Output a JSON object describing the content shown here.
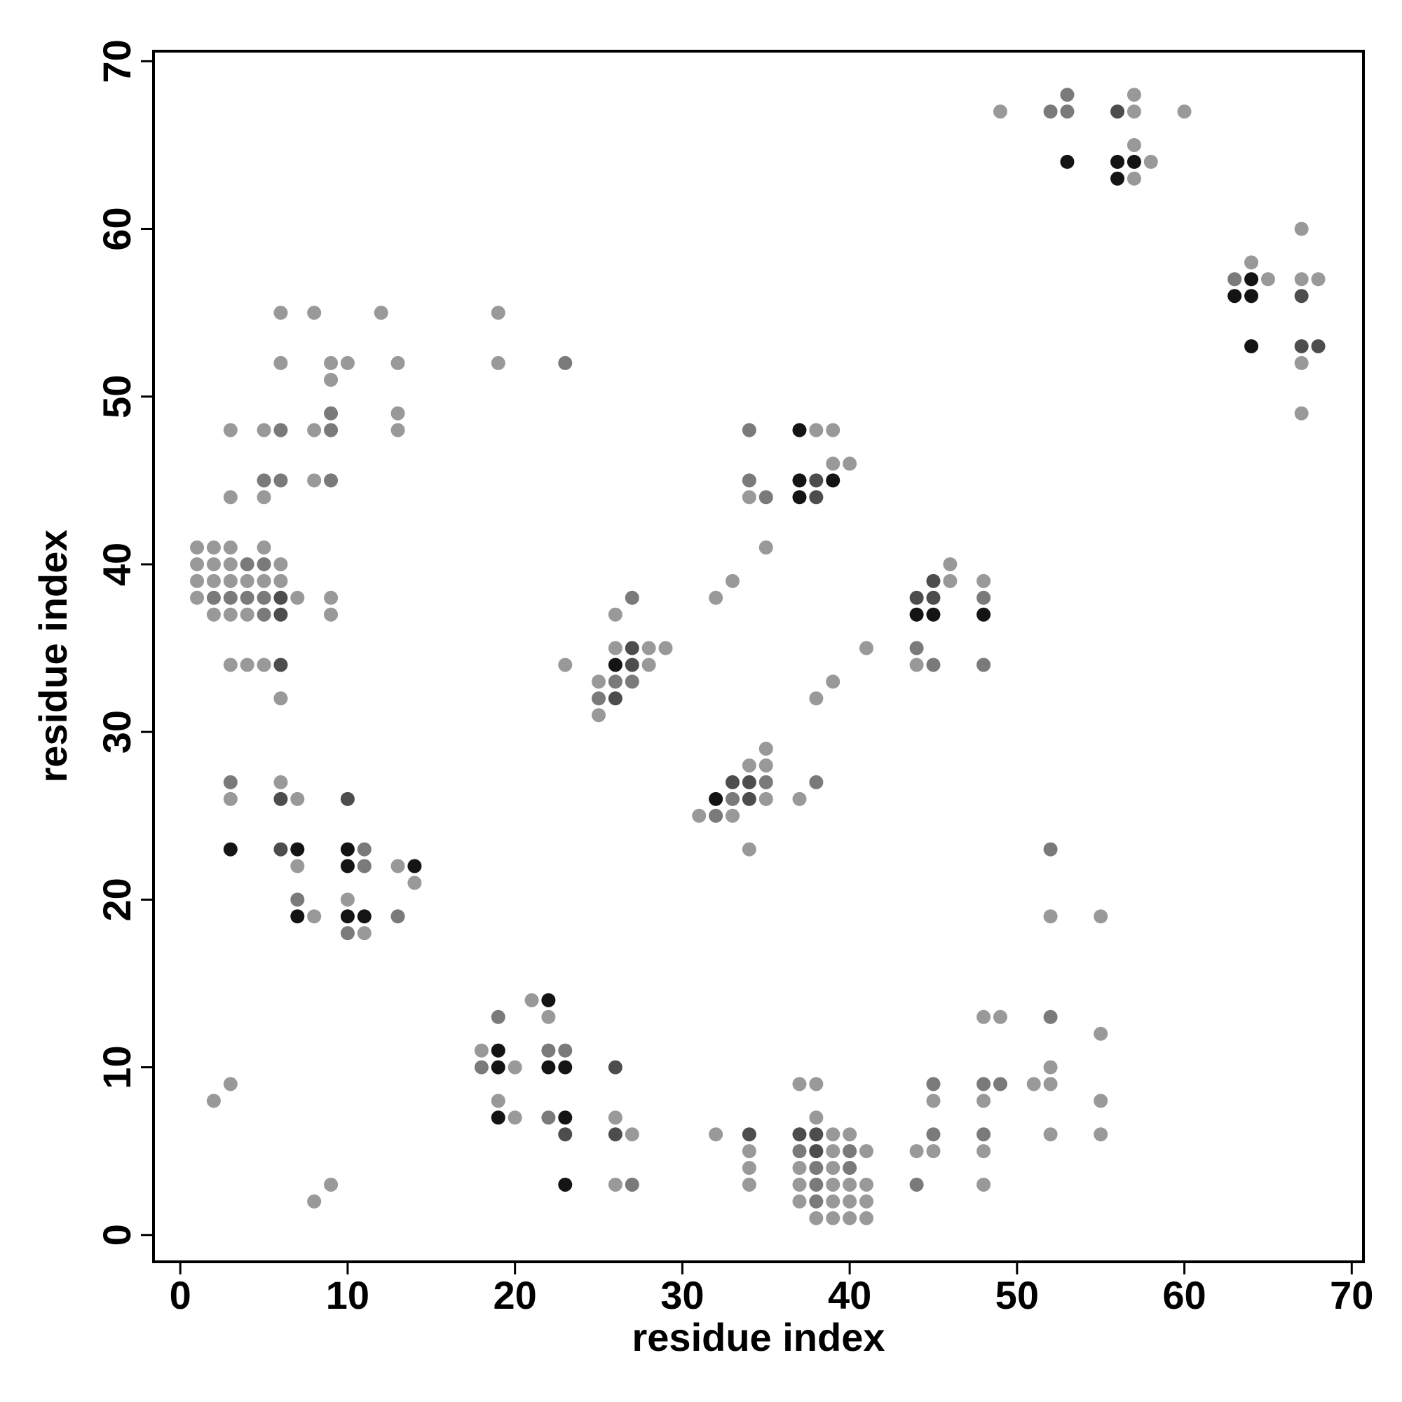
{
  "chart_data": {
    "type": "scatter",
    "x_label": "residue index",
    "y_label": "residue index",
    "xlim": [
      -1.6,
      70.7
    ],
    "ylim": [
      -1.6,
      70.6
    ],
    "xticks": [
      0,
      10,
      20,
      30,
      40,
      50,
      60,
      70
    ],
    "yticks": [
      0,
      10,
      20,
      30,
      40,
      50,
      60,
      70
    ],
    "series": [
      {
        "color": "#999999",
        "x": [
          57,
          49,
          57,
          60,
          57,
          58,
          57,
          67,
          64,
          65,
          67,
          68,
          6,
          8,
          12,
          19,
          6,
          9,
          10,
          13,
          19,
          67,
          9,
          13,
          67,
          3,
          5,
          8,
          13,
          38,
          39,
          39,
          40,
          8,
          3,
          5,
          34,
          1,
          2,
          3,
          5,
          35,
          1,
          2,
          3,
          6,
          46,
          1,
          2,
          3,
          4,
          5,
          6,
          33,
          46,
          48,
          1,
          7,
          9,
          32,
          2,
          3,
          4,
          9,
          26,
          26,
          28,
          29,
          41,
          3,
          4,
          5,
          23,
          28,
          44,
          25,
          39,
          6,
          38,
          25,
          35,
          34,
          35,
          6,
          3,
          7,
          35,
          37,
          31,
          33,
          34,
          7,
          13,
          14,
          10,
          8,
          52,
          55,
          11,
          21,
          22,
          48,
          49,
          55,
          18,
          20,
          52,
          3,
          37,
          38,
          51,
          52,
          2,
          19,
          45,
          48,
          55,
          20,
          26,
          38,
          27,
          32,
          39,
          40,
          52,
          55,
          34,
          39,
          41,
          44,
          45,
          48,
          34,
          37,
          39,
          9,
          26,
          34,
          37,
          39,
          40,
          41,
          48,
          8,
          37,
          39,
          40,
          41,
          38,
          39,
          40,
          41
        ],
        "values": [
          68,
          67,
          67,
          67,
          65,
          64,
          63,
          60,
          58,
          57,
          57,
          57,
          55,
          55,
          55,
          55,
          52,
          52,
          52,
          52,
          52,
          52,
          51,
          49,
          49,
          48,
          48,
          48,
          48,
          48,
          48,
          46,
          46,
          45,
          44,
          44,
          44,
          41,
          41,
          41,
          41,
          41,
          40,
          40,
          40,
          40,
          40,
          39,
          39,
          39,
          39,
          39,
          39,
          39,
          39,
          39,
          38,
          38,
          38,
          38,
          37,
          37,
          37,
          37,
          37,
          35,
          35,
          35,
          35,
          34,
          34,
          34,
          34,
          34,
          34,
          33,
          33,
          32,
          32,
          31,
          29,
          28,
          28,
          27,
          26,
          26,
          26,
          26,
          25,
          25,
          23,
          22,
          22,
          21,
          20,
          19,
          19,
          19,
          18,
          14,
          13,
          13,
          13,
          12,
          11,
          10,
          10,
          9,
          9,
          9,
          9,
          9,
          8,
          8,
          8,
          8,
          8,
          7,
          7,
          7,
          6,
          6,
          6,
          6,
          6,
          6,
          5,
          5,
          5,
          5,
          5,
          5,
          4,
          4,
          4,
          3,
          3,
          3,
          3,
          3,
          3,
          3,
          3,
          2,
          2,
          2,
          2,
          2,
          1,
          1,
          1,
          1
        ]
      },
      {
        "color": "#7a7a7a",
        "x": [
          53,
          52,
          53,
          63,
          23,
          9,
          6,
          9,
          34,
          5,
          6,
          9,
          34,
          35,
          4,
          5,
          2,
          3,
          4,
          5,
          27,
          48,
          5,
          44,
          45,
          48,
          26,
          27,
          25,
          3,
          35,
          38,
          33,
          32,
          11,
          52,
          11,
          7,
          13,
          10,
          19,
          52,
          22,
          23,
          18,
          45,
          48,
          49,
          22,
          45,
          48,
          37,
          40,
          38,
          40,
          27,
          38,
          44,
          38
        ],
        "values": [
          68,
          67,
          67,
          57,
          52,
          49,
          48,
          48,
          48,
          45,
          45,
          45,
          45,
          44,
          40,
          40,
          38,
          38,
          38,
          38,
          38,
          38,
          37,
          35,
          34,
          34,
          33,
          33,
          32,
          27,
          27,
          27,
          26,
          25,
          23,
          23,
          22,
          20,
          19,
          18,
          13,
          13,
          11,
          11,
          10,
          9,
          9,
          9,
          7,
          6,
          6,
          5,
          5,
          4,
          4,
          3,
          3,
          3,
          2
        ]
      },
      {
        "color": "#4d4d4d",
        "x": [
          56,
          67,
          67,
          68,
          38,
          38,
          45,
          6,
          44,
          45,
          6,
          27,
          6,
          27,
          26,
          33,
          34,
          6,
          10,
          34,
          6,
          26,
          23,
          26,
          34,
          37,
          38,
          38
        ],
        "values": [
          67,
          56,
          53,
          53,
          45,
          44,
          39,
          38,
          38,
          38,
          37,
          35,
          34,
          34,
          32,
          27,
          27,
          26,
          26,
          26,
          23,
          10,
          6,
          6,
          6,
          6,
          6,
          5
        ]
      },
      {
        "color": "#141414",
        "x": [
          53,
          56,
          57,
          56,
          64,
          63,
          64,
          64,
          37,
          37,
          39,
          37,
          44,
          45,
          48,
          26,
          32,
          3,
          7,
          10,
          10,
          14,
          7,
          10,
          11,
          22,
          19,
          19,
          22,
          23,
          19,
          23,
          23
        ],
        "values": [
          64,
          64,
          64,
          63,
          57,
          56,
          56,
          53,
          48,
          45,
          45,
          44,
          37,
          37,
          37,
          34,
          26,
          23,
          23,
          23,
          22,
          22,
          19,
          19,
          19,
          14,
          11,
          10,
          10,
          10,
          7,
          7,
          3
        ]
      }
    ]
  }
}
